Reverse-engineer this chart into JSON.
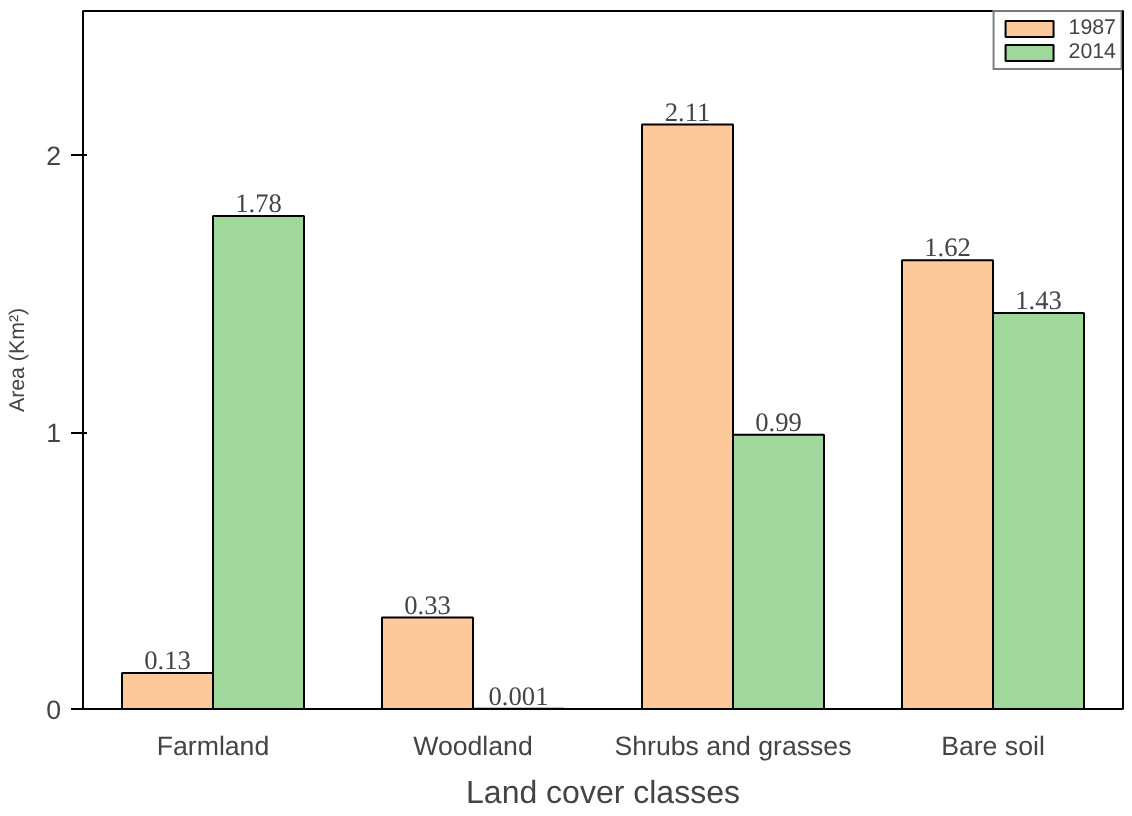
{
  "chart_data": {
    "type": "bar",
    "xlabel": "Land cover classes",
    "ylabel": "Area (Km²)",
    "categories": [
      "Farmland",
      "Woodland",
      "Shrubs and grasses",
      "Bare soil"
    ],
    "series": [
      {
        "name": "1987",
        "color": "#fdc99b",
        "values": [
          0.13,
          0.33,
          2.11,
          1.62
        ]
      },
      {
        "name": "2014",
        "color": "#a0d89b",
        "values": [
          1.78,
          0.001,
          0.99,
          1.43
        ]
      }
    ],
    "ylim": [
      0,
      2.52
    ],
    "yticks": [
      0,
      1,
      2
    ],
    "data_labels": true,
    "legend": "top right",
    "grid": false
  }
}
